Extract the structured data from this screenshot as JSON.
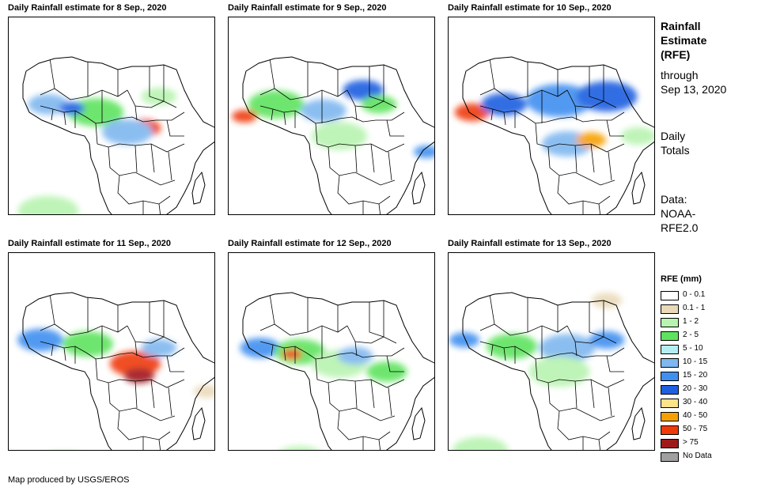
{
  "panels": [
    {
      "title": "Daily Rainfall estimate for 8 Sep., 2020"
    },
    {
      "title": "Daily Rainfall estimate for 9 Sep., 2020"
    },
    {
      "title": "Daily Rainfall estimate for 10 Sep., 2020"
    },
    {
      "title": "Daily Rainfall estimate for 11 Sep., 2020"
    },
    {
      "title": "Daily Rainfall estimate for 12 Sep., 2020"
    },
    {
      "title": "Daily Rainfall estimate for 13 Sep., 2020"
    }
  ],
  "sidebar": {
    "heading_1": "Rainfall",
    "heading_2": "Estimate",
    "heading_3": "(RFE)",
    "through_1": "through",
    "through_2": "Sep 13, 2020",
    "totals_1": "Daily",
    "totals_2": "Totals",
    "data_1": "Data:",
    "data_2": "NOAA-",
    "data_3": "RFE2.0"
  },
  "legend": {
    "title": "RFE (mm)",
    "items": [
      {
        "label": "0 - 0.1",
        "color": "#ffffff"
      },
      {
        "label": "0.1 - 1",
        "color": "#e9d9b8"
      },
      {
        "label": "1 - 2",
        "color": "#b8f3b0"
      },
      {
        "label": "2 - 5",
        "color": "#5ee35e"
      },
      {
        "label": "5 - 10",
        "color": "#b5eef2"
      },
      {
        "label": "10 - 15",
        "color": "#7fb7ef"
      },
      {
        "label": "15 - 20",
        "color": "#3f8ff0"
      },
      {
        "label": "20 - 30",
        "color": "#1f5fe0"
      },
      {
        "label": "30 - 40",
        "color": "#fde48a"
      },
      {
        "label": "40 - 50",
        "color": "#f6a000"
      },
      {
        "label": "50 - 75",
        "color": "#ef3a0a"
      },
      {
        "label": "> 75",
        "color": "#a0181c"
      },
      {
        "label": "No Data",
        "color": "#a0a0a0"
      }
    ]
  },
  "footer": "Map produced by USGS/EROS"
}
